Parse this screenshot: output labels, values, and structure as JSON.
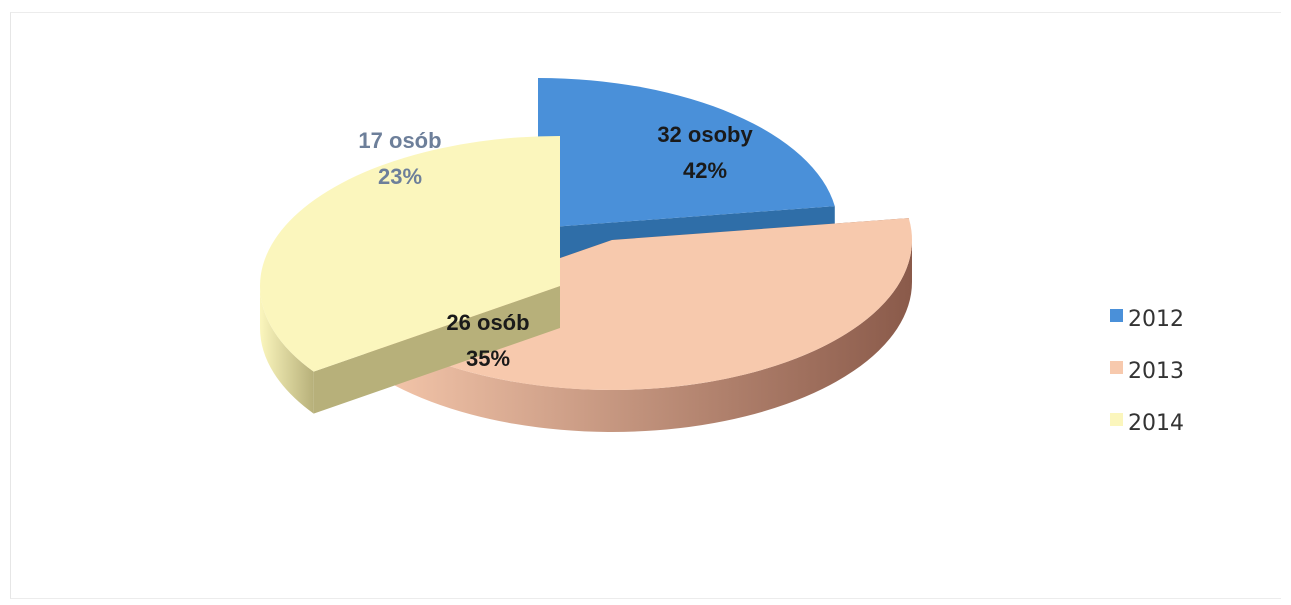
{
  "chart_data": {
    "type": "pie",
    "title": "",
    "categories": [
      "2012",
      "2013",
      "2014"
    ],
    "values": [
      17,
      32,
      26
    ],
    "percentages": [
      23,
      42,
      35
    ],
    "slice_labels": [
      {
        "count": "17 osób",
        "percent": "23%"
      },
      {
        "count": "32 osoby",
        "percent": "42%"
      },
      {
        "count": "26 osób",
        "percent": "35%"
      }
    ],
    "colors": [
      "#4a90d9",
      "#f7c9ad",
      "#fbf6bd"
    ],
    "legend_placement": "right",
    "exploded": true,
    "three_d": true
  }
}
